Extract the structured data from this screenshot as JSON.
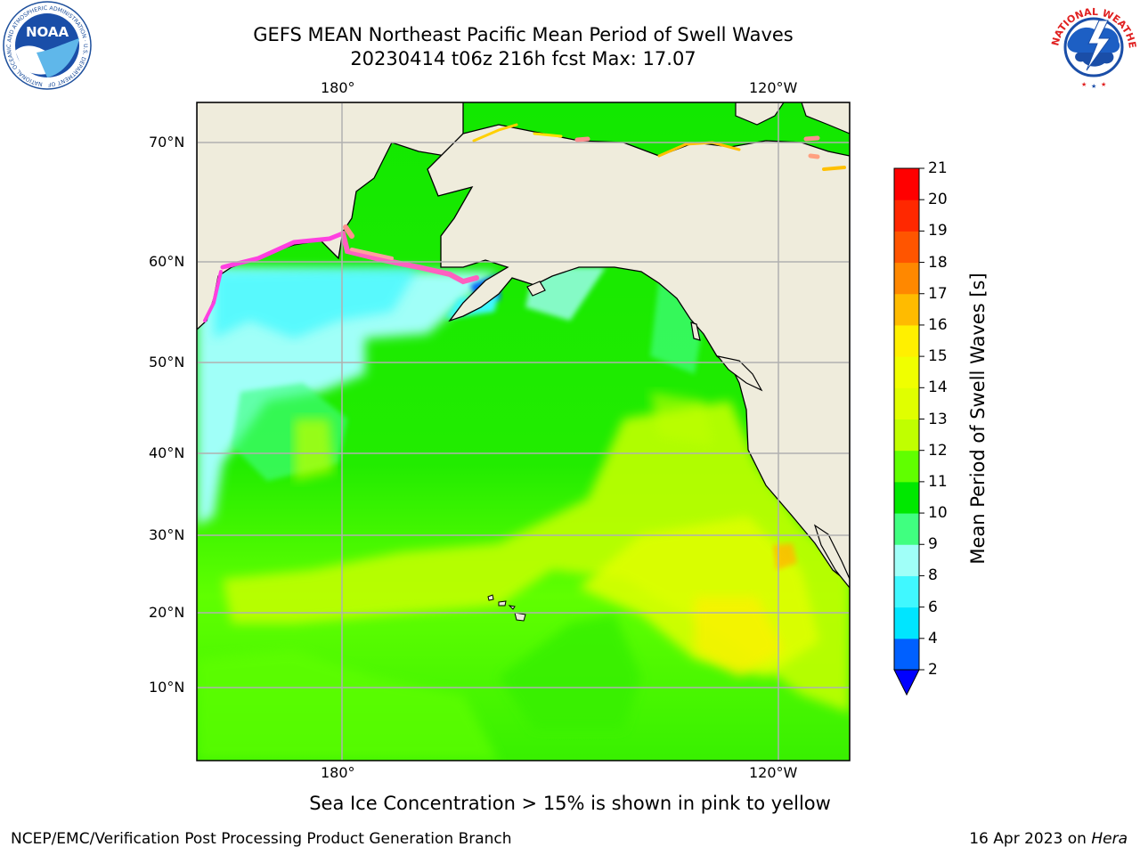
{
  "title_line1": "GEFS MEAN Northeast Pacific Mean Period of Swell Waves",
  "title_line2": "20230414 t06z 216h fcst   Max: 17.07",
  "logos": {
    "left": {
      "icon": "noaa-logo",
      "text": "NOAA",
      "ring_text": "NATIONAL OCEANIC AND ATMOSPHERIC ADMINISTRATION · U.S. DEPARTMENT OF COMMERCE"
    },
    "right": {
      "icon": "nws-logo",
      "ring_text": "NATIONAL WEATHER SERVICE"
    }
  },
  "map": {
    "lon_labels": [
      "180°",
      "120°W"
    ],
    "lat_labels": [
      "70°N",
      "60°N",
      "50°N",
      "40°N",
      "30°N",
      "20°N",
      "10°N"
    ],
    "colors": {
      "land": "#efecdc",
      "coast": "#000000",
      "grid": "#b0b0b0"
    }
  },
  "colorbar": {
    "title": "Mean Period of Swell Waves [s]",
    "ticks": [
      "2",
      "4",
      "6",
      "8",
      "9",
      "10",
      "11",
      "12",
      "13",
      "14",
      "15",
      "16",
      "17",
      "18",
      "19",
      "20",
      "21"
    ],
    "colors": [
      "#0060ff",
      "#00e5ff",
      "#40f8ff",
      "#a0fff8",
      "#40ff80",
      "#00e800",
      "#60ff00",
      "#c0ff00",
      "#e0ff00",
      "#f0ff00",
      "#fff000",
      "#ffbb00",
      "#ff8800",
      "#ff5500",
      "#ff2800",
      "#ff0000"
    ],
    "under_color": "#0000ff"
  },
  "note": "Sea Ice Concentration > 15% is shown in pink to yellow",
  "credit": "NCEP/EMC/Verification Post Processing Product Generation Branch",
  "date_text": "16 Apr 2023 on ",
  "date_host": "Hera"
}
